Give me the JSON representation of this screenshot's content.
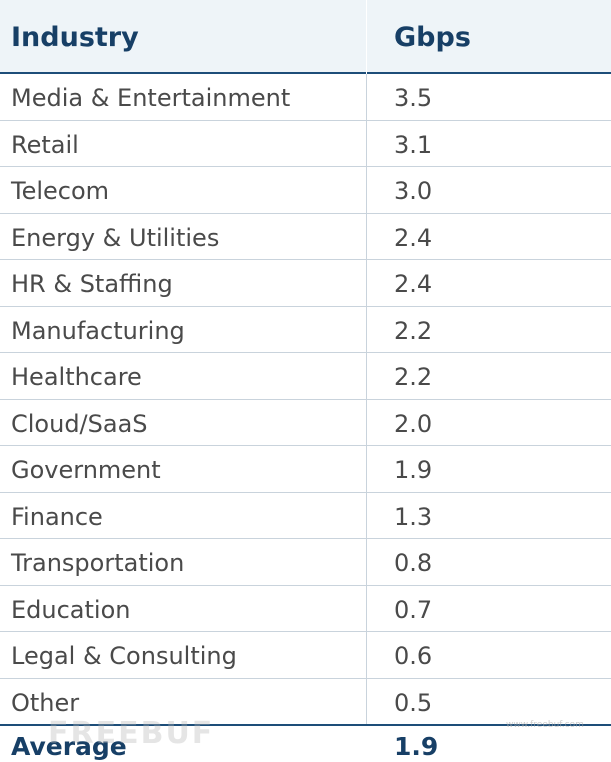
{
  "table": {
    "headers": {
      "industry": "Industry",
      "gbps": "Gbps"
    },
    "rows": [
      {
        "industry": "Media & Entertainment",
        "gbps": "3.5"
      },
      {
        "industry": "Retail",
        "gbps": "3.1"
      },
      {
        "industry": "Telecom",
        "gbps": "3.0"
      },
      {
        "industry": "Energy & Utilities",
        "gbps": "2.4"
      },
      {
        "industry": "HR & Staffing",
        "gbps": "2.4"
      },
      {
        "industry": "Manufacturing",
        "gbps": "2.2"
      },
      {
        "industry": "Healthcare",
        "gbps": "2.2"
      },
      {
        "industry": "Cloud/SaaS",
        "gbps": "2.0"
      },
      {
        "industry": "Government",
        "gbps": "1.9"
      },
      {
        "industry": "Finance",
        "gbps": "1.3"
      },
      {
        "industry": "Transportation",
        "gbps": "0.8"
      },
      {
        "industry": "Education",
        "gbps": "0.7"
      },
      {
        "industry": "Legal & Consulting",
        "gbps": "0.6"
      },
      {
        "industry": "Other",
        "gbps": "0.5"
      }
    ],
    "average": {
      "industry": "Average",
      "gbps": "1.9"
    }
  },
  "watermark": {
    "text": "FREEBUF",
    "small": "www.freebuf.com"
  },
  "colors": {
    "header_text": "#173f66",
    "header_bg": "#eef4f8",
    "rule": "#1d4e79",
    "cell_text": "#4a4a4a"
  }
}
